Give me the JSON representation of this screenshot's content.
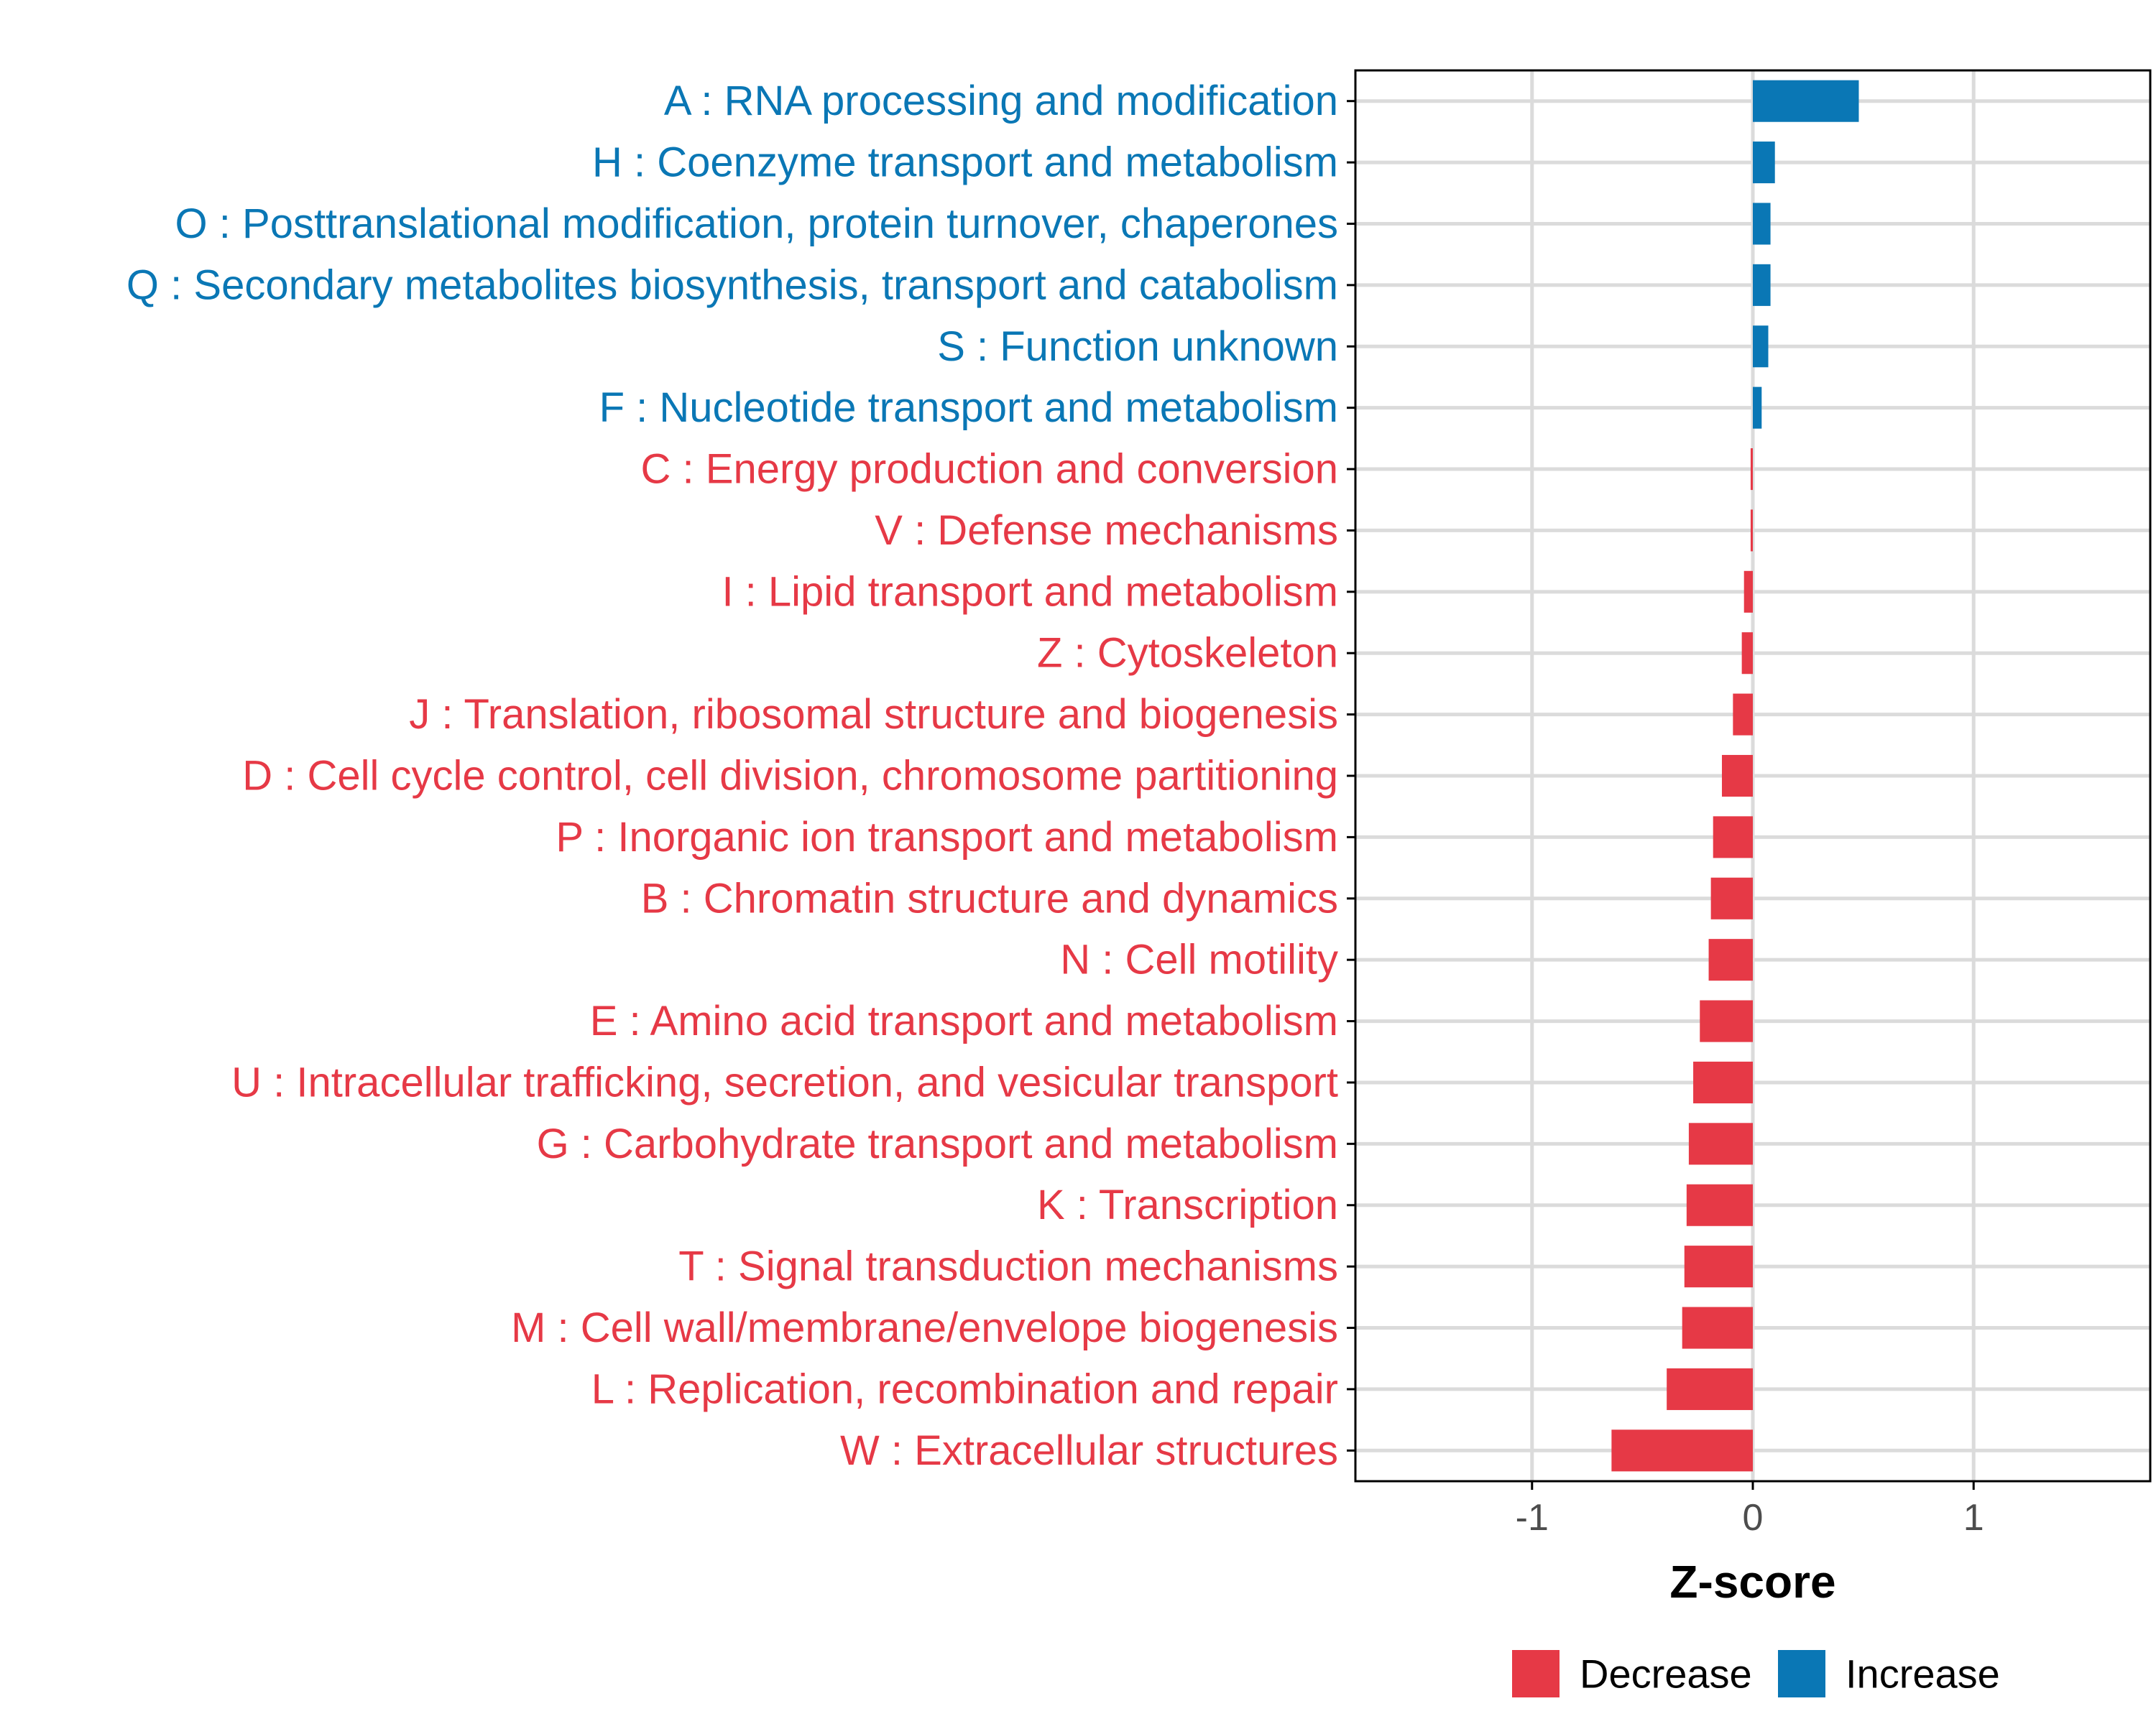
{
  "colors": {
    "decrease": "#e63946",
    "increase": "#0a77b5",
    "grid": "#dbdbdb",
    "axis": "#000000",
    "tick_text": "#4d4d4d"
  },
  "chart_data": {
    "type": "bar",
    "orientation": "horizontal",
    "title": "",
    "xlabel": "Z-score",
    "ylabel": "",
    "xlim": [
      -1.8,
      1.8
    ],
    "xticks": [
      -1,
      0,
      1
    ],
    "xtick_labels": [
      "-1",
      "0",
      "1"
    ],
    "grid": true,
    "legend_position": "bottom",
    "legend": [
      {
        "name": "Decrease",
        "color_key": "decrease"
      },
      {
        "name": "Increase",
        "color_key": "increase"
      }
    ],
    "categories": [
      "A : RNA processing and modification",
      "H : Coenzyme transport and metabolism",
      "O : Posttranslational modification, protein turnover, chaperones",
      "Q : Secondary metabolites biosynthesis, transport and catabolism",
      "S : Function unknown",
      "F : Nucleotide transport and metabolism",
      "C : Energy production and conversion",
      "V : Defense mechanisms",
      "I : Lipid transport and metabolism",
      "Z : Cytoskeleton",
      "J : Translation, ribosomal structure and biogenesis",
      "D : Cell cycle control, cell division, chromosome partitioning",
      "P : Inorganic ion transport and metabolism",
      "B : Chromatin structure and dynamics",
      "N : Cell motility",
      "E : Amino acid transport and metabolism",
      "U : Intracellular trafficking, secretion, and vesicular transport",
      "G : Carbohydrate transport and metabolism",
      "K : Transcription",
      "T : Signal transduction mechanisms",
      "M : Cell wall/membrane/envelope biogenesis",
      "L : Replication, recombination and repair",
      "W : Extracellular structures"
    ],
    "values": [
      0.48,
      0.1,
      0.08,
      0.08,
      0.07,
      0.04,
      -0.01,
      -0.01,
      -0.04,
      -0.05,
      -0.09,
      -0.14,
      -0.18,
      -0.19,
      -0.2,
      -0.24,
      -0.27,
      -0.29,
      -0.3,
      -0.31,
      -0.32,
      -0.39,
      -0.64
    ],
    "direction": [
      "Increase",
      "Increase",
      "Increase",
      "Increase",
      "Increase",
      "Increase",
      "Decrease",
      "Decrease",
      "Decrease",
      "Decrease",
      "Decrease",
      "Decrease",
      "Decrease",
      "Decrease",
      "Decrease",
      "Decrease",
      "Decrease",
      "Decrease",
      "Decrease",
      "Decrease",
      "Decrease",
      "Decrease",
      "Decrease"
    ]
  }
}
